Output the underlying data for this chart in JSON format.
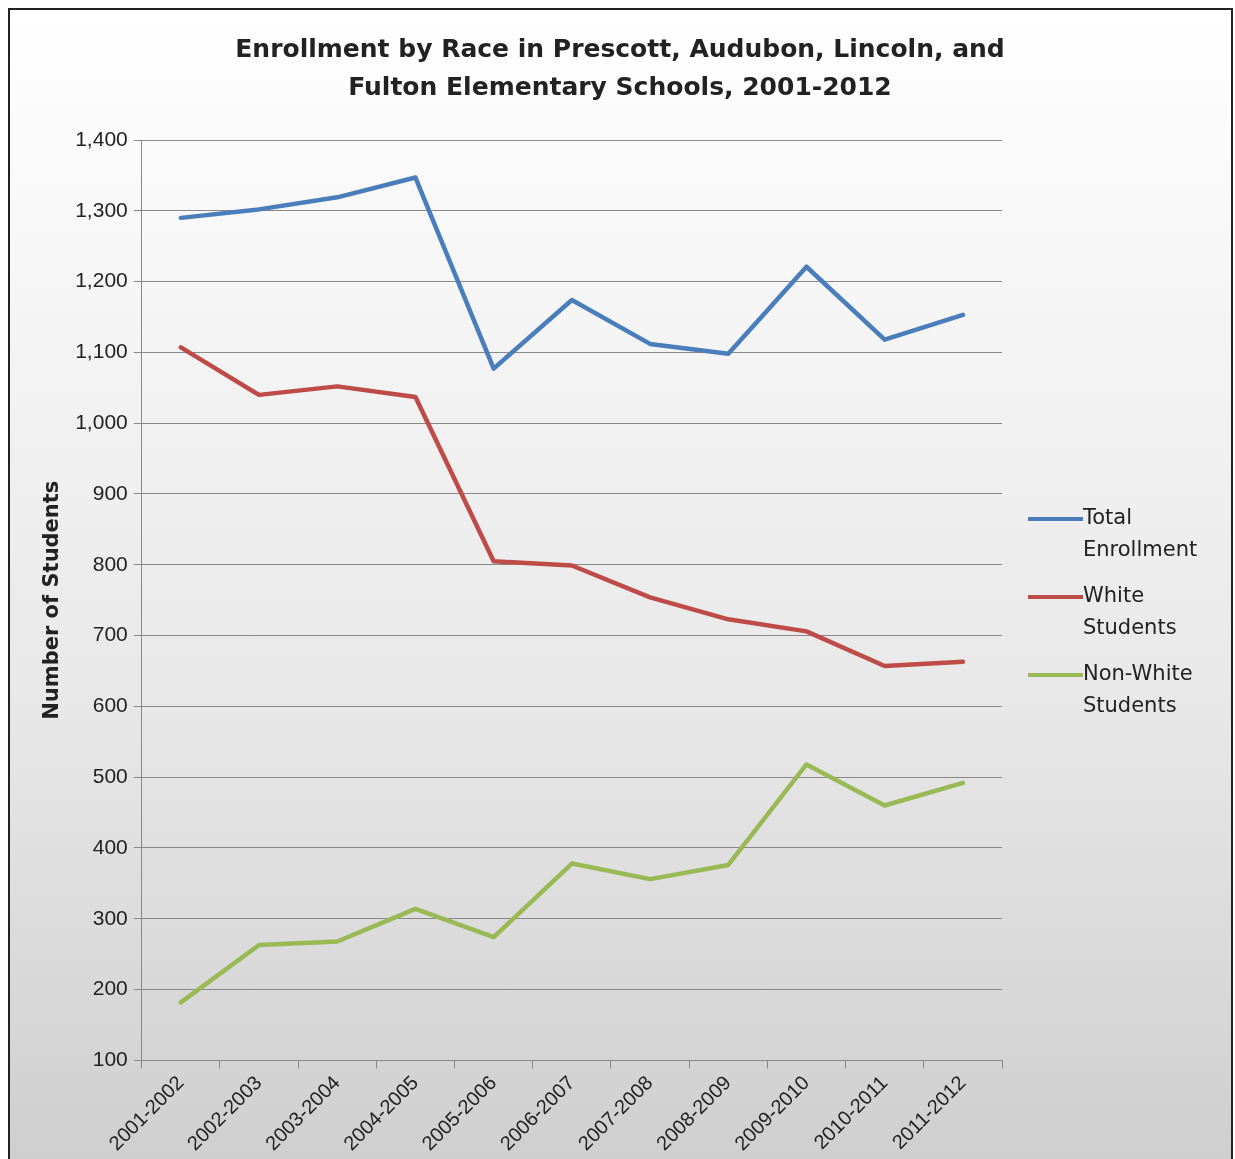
{
  "chart_data": {
    "type": "line",
    "title": "Enrollment by Race in Prescott, Audubon, Lincoln, and Fulton Elementary Schools, 2001-2012",
    "ylabel": "Number of Students",
    "categories": [
      "2001-2002",
      "2002-2003",
      "2003-2004",
      "2004-2005",
      "2005-2006",
      "2006-2007",
      "2007-2008",
      "2008-2009",
      "2009-2010",
      "2010-2011",
      "2011-2012"
    ],
    "series": [
      {
        "name": "Total Enrollment",
        "color": "#4a7ebb",
        "values": [
          1290,
          1302,
          1319,
          1347,
          1077,
          1174,
          1112,
          1098,
          1221,
          1118,
          1153
        ]
      },
      {
        "name": "White Students",
        "color": "#be4b48",
        "values": [
          1107,
          1040,
          1052,
          1037,
          805,
          799,
          754,
          723,
          706,
          657,
          663
        ]
      },
      {
        "name": "Non-White Students",
        "color": "#98b954",
        "values": [
          182,
          263,
          268,
          314,
          274,
          378,
          356,
          376,
          518,
          460,
          492
        ]
      }
    ],
    "ylim": [
      100,
      1400
    ],
    "yticks": [
      100,
      200,
      300,
      400,
      500,
      600,
      700,
      800,
      900,
      {
        "value": 1000,
        "label": "1,000"
      },
      {
        "value": 1100,
        "label": "1,100"
      },
      {
        "value": 1200,
        "label": "1,200"
      },
      {
        "value": 1300,
        "label": "1,300"
      },
      {
        "value": 1400,
        "label": "1,400"
      }
    ],
    "grid": "y",
    "legend": "right",
    "marker": "none",
    "line_style": "solid"
  }
}
